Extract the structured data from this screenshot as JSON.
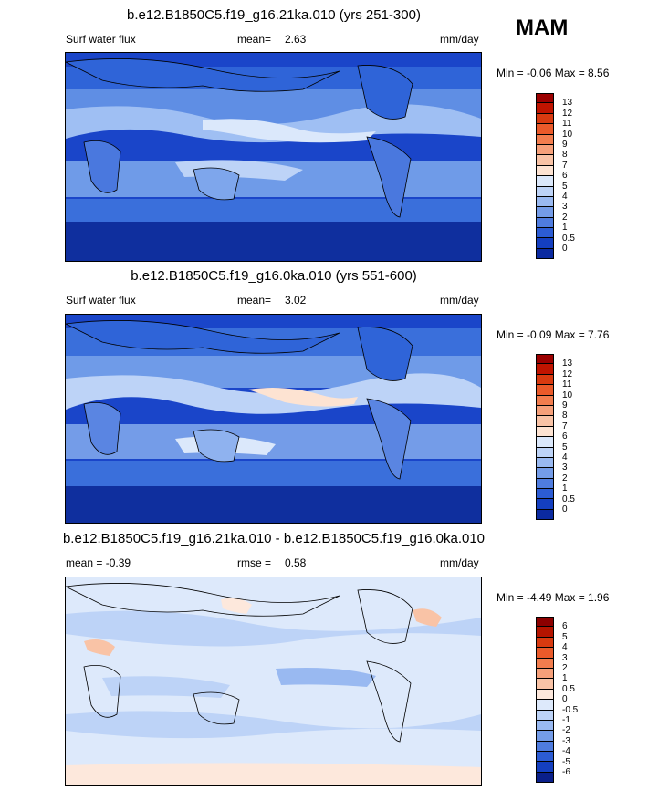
{
  "season": "MAM",
  "panels": [
    {
      "title": "b.e12.B1850C5.f19_g16.21ka.010 (yrs 251-300)",
      "left_label": "Surf water flux",
      "stat1_label": "mean=",
      "stat1_value": "2.63",
      "units": "mm/day",
      "minmax": "Min = -0.06 Max = 8.56",
      "ticks": [
        "13",
        "12",
        "11",
        "10",
        "9",
        "8",
        "7",
        "6",
        "5",
        "4",
        "3",
        "2",
        "1",
        "0.5",
        "0"
      ],
      "colors": [
        "#9b0000",
        "#c01400",
        "#d83a10",
        "#ea5a2a",
        "#f27d4e",
        "#f6a07a",
        "#f9c3a6",
        "#fde3d2",
        "#dbe8fb",
        "#bdd3f7",
        "#99b9f1",
        "#749ce8",
        "#4f7cdf",
        "#2c5cd4",
        "#143fc0",
        "#0b2aa0"
      ]
    },
    {
      "title": "b.e12.B1850C5.f19_g16.0ka.010 (yrs 551-600)",
      "left_label": "Surf water flux",
      "stat1_label": "mean=",
      "stat1_value": "3.02",
      "units": "mm/day",
      "minmax": "Min = -0.09 Max = 7.76",
      "ticks": [
        "13",
        "12",
        "11",
        "10",
        "9",
        "8",
        "7",
        "6",
        "5",
        "4",
        "3",
        "2",
        "1",
        "0.5",
        "0"
      ],
      "colors": [
        "#9b0000",
        "#c01400",
        "#d83a10",
        "#ea5a2a",
        "#f27d4e",
        "#f6a07a",
        "#f9c3a6",
        "#fde3d2",
        "#dbe8fb",
        "#bdd3f7",
        "#99b9f1",
        "#749ce8",
        "#4f7cdf",
        "#2c5cd4",
        "#143fc0",
        "#0b2aa0"
      ]
    },
    {
      "title": "b.e12.B1850C5.f19_g16.21ka.010 - b.e12.B1850C5.f19_g16.0ka.010",
      "left_label": "mean =  -0.39",
      "stat1_label": "rmse =",
      "stat1_value": "0.58",
      "units": "mm/day",
      "minmax": "Min = -4.49 Max = 1.96",
      "ticks": [
        "6",
        "5",
        "4",
        "3",
        "2",
        "1",
        "0.5",
        "0",
        "-0.5",
        "-1",
        "-2",
        "-3",
        "-4",
        "-5",
        "-6"
      ],
      "colors": [
        "#8c0000",
        "#b41400",
        "#d83a10",
        "#ea5a2a",
        "#f27d4e",
        "#f6a07a",
        "#f9c3a6",
        "#fde8dc",
        "#dde9fb",
        "#bdd3f7",
        "#99b9f1",
        "#749ce8",
        "#4f7cdf",
        "#2c5cd4",
        "#143fc0",
        "#0a1f8a"
      ]
    }
  ]
}
